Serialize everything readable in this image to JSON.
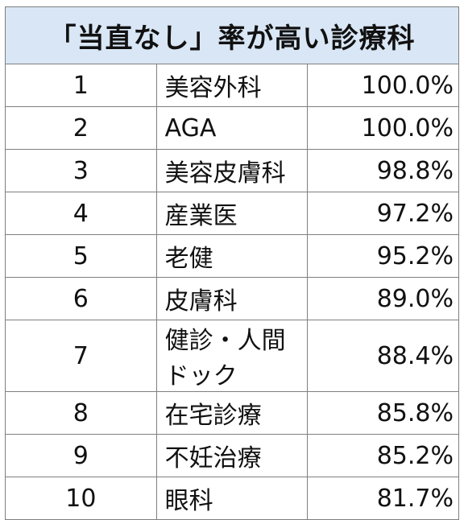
{
  "title": "「当直なし」率が高い診療科",
  "rows": [
    {
      "rank": "1",
      "department": "美容外科",
      "rate": "100.0%"
    },
    {
      "rank": "2",
      "department": "AGA",
      "rate": "100.0%"
    },
    {
      "rank": "3",
      "department": "美容皮膚科",
      "rate": "98.8%"
    },
    {
      "rank": "4",
      "department": "産業医",
      "rate": "97.2%"
    },
    {
      "rank": "5",
      "department": "老健",
      "rate": "95.2%"
    },
    {
      "rank": "6",
      "department": "皮膚科",
      "rate": "89.0%"
    },
    {
      "rank": "7",
      "department": "健診・人間ドック",
      "rate": "88.4%"
    },
    {
      "rank": "8",
      "department": "在宅診療",
      "rate": "85.8%"
    },
    {
      "rank": "9",
      "department": "不妊治療",
      "rate": "85.2%"
    },
    {
      "rank": "10",
      "department": "眼科",
      "rate": "81.7%"
    }
  ],
  "colors": {
    "header_background": "#d9e6f5",
    "border": "#7f7f7f",
    "text": "#111111"
  }
}
